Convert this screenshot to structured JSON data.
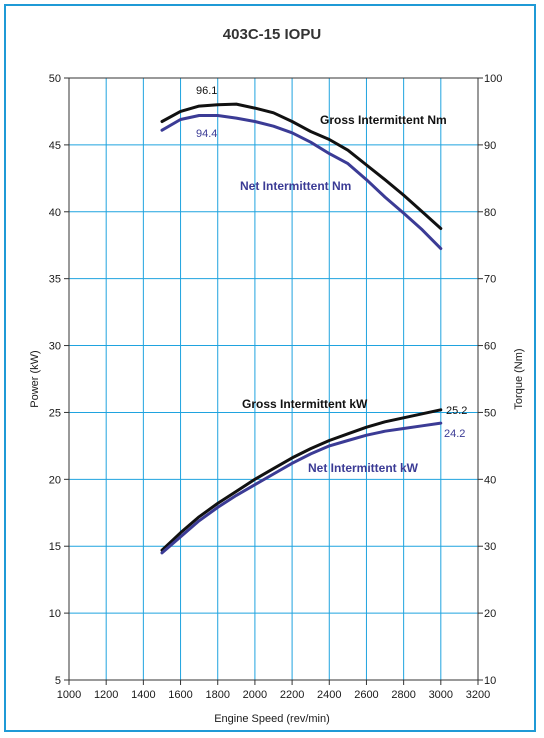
{
  "chart_data": {
    "type": "line",
    "title": "403C-15 IOPU",
    "xlabel": "Engine Speed (rev/min)",
    "ylabel": "Power (kW)",
    "y2label": "Torque (Nm)",
    "xlim": [
      1000,
      3200
    ],
    "ylim": [
      5,
      50
    ],
    "y2lim": [
      10,
      100
    ],
    "grid": true,
    "x_ticks": [
      1000,
      1200,
      1400,
      1600,
      1800,
      2000,
      2200,
      2400,
      2600,
      2800,
      3000,
      3200
    ],
    "y_ticks": [
      5,
      10,
      15,
      20,
      25,
      30,
      35,
      40,
      45,
      50
    ],
    "y2_ticks": [
      10,
      20,
      30,
      40,
      50,
      60,
      70,
      80,
      90,
      100
    ],
    "series": [
      {
        "name": "Gross Intermittent Nm",
        "axis": "right",
        "color": "#111111",
        "x": [
          1500,
          1600,
          1700,
          1800,
          1900,
          2000,
          2100,
          2200,
          2300,
          2400,
          2500,
          2600,
          2700,
          2800,
          2900,
          3000
        ],
        "y": [
          93.5,
          95.0,
          95.8,
          96.0,
          96.1,
          95.5,
          94.8,
          93.5,
          92.0,
          90.8,
          89.2,
          87.0,
          84.8,
          82.5,
          80.0,
          77.5
        ]
      },
      {
        "name": "Net Intermittent Nm",
        "axis": "right",
        "color": "#3b3b95",
        "x": [
          1500,
          1600,
          1700,
          1800,
          1900,
          2000,
          2100,
          2200,
          2300,
          2400,
          2500,
          2600,
          2700,
          2800,
          2900,
          3000
        ],
        "y": [
          92.2,
          93.8,
          94.4,
          94.4,
          94.0,
          93.5,
          92.8,
          91.8,
          90.4,
          88.7,
          87.2,
          84.8,
          82.2,
          79.8,
          77.3,
          74.5
        ]
      },
      {
        "name": "Gross Intermittent kW",
        "axis": "left",
        "color": "#111111",
        "x": [
          1500,
          1600,
          1700,
          1800,
          1900,
          2000,
          2100,
          2200,
          2300,
          2400,
          2500,
          2600,
          2700,
          2800,
          2900,
          3000
        ],
        "y": [
          14.7,
          16.0,
          17.2,
          18.2,
          19.1,
          20.0,
          20.8,
          21.6,
          22.3,
          22.9,
          23.4,
          23.9,
          24.3,
          24.6,
          24.9,
          25.2
        ]
      },
      {
        "name": "Net Intermittent kW",
        "axis": "left",
        "color": "#3b3b95",
        "x": [
          1500,
          1600,
          1700,
          1800,
          1900,
          2000,
          2100,
          2200,
          2300,
          2400,
          2500,
          2600,
          2700,
          2800,
          2900,
          3000
        ],
        "y": [
          14.5,
          15.7,
          16.9,
          17.9,
          18.8,
          19.6,
          20.4,
          21.2,
          21.9,
          22.5,
          22.9,
          23.3,
          23.6,
          23.8,
          24.0,
          24.2
        ]
      }
    ],
    "annotations": [
      {
        "text": "96.1",
        "series": "Gross Intermittent Nm"
      },
      {
        "text": "94.4",
        "series": "Net Intermittent Nm"
      },
      {
        "text": "25.2",
        "series": "Gross Intermittent kW"
      },
      {
        "text": "24.2",
        "series": "Net Intermittent kW"
      }
    ]
  }
}
